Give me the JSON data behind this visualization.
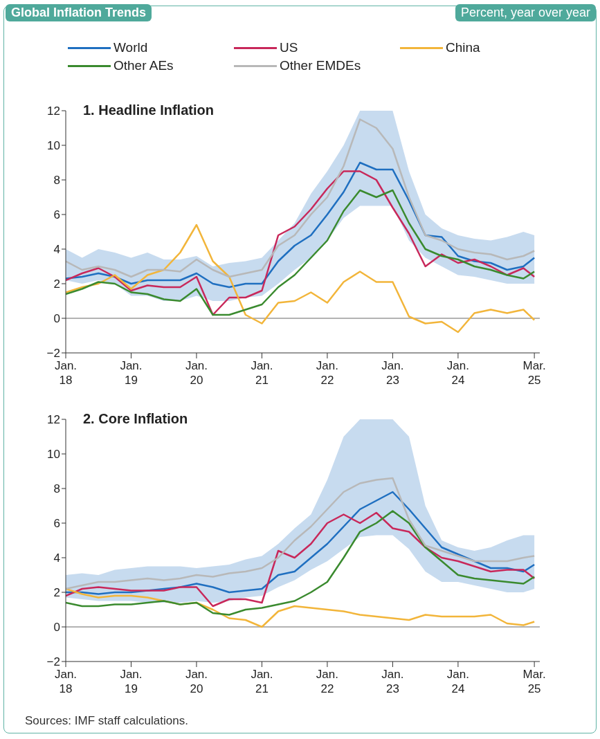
{
  "chart_data": [
    {
      "type": "line",
      "title": "1. Headline Inflation",
      "x": [
        "2018-01",
        "2018-04",
        "2018-07",
        "2018-10",
        "2019-01",
        "2019-04",
        "2019-07",
        "2019-10",
        "2020-01",
        "2020-04",
        "2020-07",
        "2020-10",
        "2021-01",
        "2021-04",
        "2021-07",
        "2021-10",
        "2022-01",
        "2022-04",
        "2022-07",
        "2022-10",
        "2023-01",
        "2023-04",
        "2023-07",
        "2023-10",
        "2024-01",
        "2024-04",
        "2024-07",
        "2024-10",
        "2025-01",
        "2025-03"
      ],
      "xlim": [
        "2018-01",
        "2025-04"
      ],
      "xticks": [
        {
          "value": "2018-01",
          "label": "Jan. 18"
        },
        {
          "value": "2019-01",
          "label": "Jan. 19"
        },
        {
          "value": "2020-01",
          "label": "Jan. 20"
        },
        {
          "value": "2021-01",
          "label": "Jan. 21"
        },
        {
          "value": "2022-01",
          "label": "Jan. 22"
        },
        {
          "value": "2023-01",
          "label": "Jan. 23"
        },
        {
          "value": "2024-01",
          "label": "Jan. 24"
        },
        {
          "value": "2025-03",
          "label": "Mar. 25"
        }
      ],
      "ylim": [
        -2,
        12
      ],
      "yticks": [
        {
          "value": -2,
          "label": "−2"
        },
        0,
        2,
        4,
        6,
        8,
        10,
        12
      ],
      "ref_lines": [
        {
          "axis": "y",
          "value": 0,
          "color": "#9a9a9a"
        }
      ],
      "legend": "top",
      "marker": "none",
      "line_style": "solid",
      "series": [
        {
          "name": "World",
          "color": "#1f6fc0",
          "values": [
            2.3,
            2.4,
            2.6,
            2.4,
            2.0,
            2.2,
            2.2,
            2.2,
            2.6,
            2.0,
            1.8,
            2.0,
            2.0,
            3.3,
            4.2,
            4.8,
            6.0,
            7.3,
            9.0,
            8.6,
            8.6,
            6.8,
            4.8,
            4.7,
            3.6,
            3.3,
            3.2,
            2.8,
            3.0,
            3.5
          ],
          "lower": [
            2.2,
            2.0,
            2.2,
            2.0,
            1.3,
            1.3,
            1.0,
            1.0,
            1.3,
            1.0,
            1.0,
            1.2,
            1.3,
            2.0,
            2.8,
            3.5,
            4.5,
            5.8,
            6.5,
            6.5,
            6.5,
            4.5,
            3.5,
            3.0,
            2.5,
            2.4,
            2.2,
            2.0,
            2.0,
            2.0
          ],
          "upper": [
            4.0,
            3.5,
            4.0,
            3.8,
            3.5,
            3.8,
            3.4,
            3.4,
            3.6,
            3.0,
            3.2,
            3.3,
            3.5,
            4.5,
            5.5,
            7.2,
            8.5,
            10,
            12,
            12,
            12,
            8.5,
            6.0,
            5.2,
            4.8,
            4.6,
            4.5,
            4.7,
            5.0,
            4.8
          ]
        },
        {
          "name": "US",
          "color": "#c8285a",
          "values": [
            2.2,
            2.6,
            2.9,
            2.4,
            1.6,
            1.9,
            1.8,
            1.8,
            2.4,
            0.2,
            1.2,
            1.2,
            1.6,
            4.8,
            5.3,
            6.3,
            7.5,
            8.5,
            8.5,
            8.0,
            6.4,
            4.9,
            3.0,
            3.7,
            3.2,
            3.4,
            3.0,
            2.5,
            2.9,
            2.4
          ]
        },
        {
          "name": "China",
          "color": "#f2b53a",
          "values": [
            1.5,
            1.8,
            2.0,
            2.5,
            1.7,
            2.5,
            2.8,
            3.8,
            5.4,
            3.3,
            2.4,
            0.2,
            -0.3,
            0.9,
            1.0,
            1.5,
            0.9,
            2.1,
            2.7,
            2.1,
            2.1,
            0.1,
            -0.3,
            -0.2,
            -0.8,
            0.3,
            0.5,
            0.3,
            0.5,
            -0.1
          ]
        },
        {
          "name": "Other AEs",
          "color": "#3a8a2e",
          "values": [
            1.4,
            1.7,
            2.1,
            2.0,
            1.5,
            1.4,
            1.1,
            1.0,
            1.7,
            0.2,
            0.2,
            0.5,
            0.8,
            1.8,
            2.5,
            3.5,
            4.5,
            6.2,
            7.4,
            7.0,
            7.4,
            5.5,
            4.0,
            3.6,
            3.4,
            3.0,
            2.8,
            2.5,
            2.3,
            2.7
          ]
        },
        {
          "name": "Other EMDEs",
          "color": "#b8b8b8",
          "values": [
            3.3,
            2.8,
            3.0,
            2.8,
            2.4,
            2.8,
            2.8,
            2.7,
            3.4,
            2.8,
            2.4,
            2.6,
            2.8,
            4.2,
            4.8,
            6.0,
            7.0,
            8.8,
            11.5,
            11.0,
            9.8,
            7.0,
            4.8,
            4.5,
            4.0,
            3.8,
            3.7,
            3.4,
            3.6,
            3.9
          ]
        }
      ]
    },
    {
      "type": "line",
      "title": "2. Core Inflation",
      "x": [
        "2018-01",
        "2018-04",
        "2018-07",
        "2018-10",
        "2019-01",
        "2019-04",
        "2019-07",
        "2019-10",
        "2020-01",
        "2020-04",
        "2020-07",
        "2020-10",
        "2021-01",
        "2021-04",
        "2021-07",
        "2021-10",
        "2022-01",
        "2022-04",
        "2022-07",
        "2022-10",
        "2023-01",
        "2023-04",
        "2023-07",
        "2023-10",
        "2024-01",
        "2024-04",
        "2024-07",
        "2024-10",
        "2025-01",
        "2025-03"
      ],
      "xlim": [
        "2018-01",
        "2025-04"
      ],
      "xticks": [
        {
          "value": "2018-01",
          "label": "Jan. 18"
        },
        {
          "value": "2019-01",
          "label": "Jan. 19"
        },
        {
          "value": "2020-01",
          "label": "Jan. 20"
        },
        {
          "value": "2021-01",
          "label": "Jan. 21"
        },
        {
          "value": "2022-01",
          "label": "Jan. 22"
        },
        {
          "value": "2023-01",
          "label": "Jan. 23"
        },
        {
          "value": "2024-01",
          "label": "Jan. 24"
        },
        {
          "value": "2025-03",
          "label": "Mar. 25"
        }
      ],
      "ylim": [
        -2,
        12
      ],
      "yticks": [
        {
          "value": -2,
          "label": "−2"
        },
        0,
        2,
        4,
        6,
        8,
        10,
        12
      ],
      "ref_lines": [
        {
          "axis": "y",
          "value": 0,
          "color": "#9a9a9a"
        }
      ],
      "marker": "none",
      "line_style": "solid",
      "series": [
        {
          "color": "#1f6fc0",
          "values": [
            2.0,
            2.0,
            1.9,
            2.0,
            2.0,
            2.1,
            2.2,
            2.3,
            2.5,
            2.3,
            2.0,
            2.1,
            2.2,
            3.0,
            3.2,
            4.0,
            4.8,
            5.8,
            6.8,
            7.3,
            7.8,
            6.8,
            5.7,
            4.6,
            4.2,
            3.8,
            3.4,
            3.4,
            3.2,
            3.6
          ],
          "lower": [
            1.7,
            1.6,
            1.5,
            1.5,
            1.5,
            1.4,
            1.4,
            1.4,
            1.5,
            1.4,
            1.5,
            1.7,
            1.8,
            2.3,
            2.7,
            3.3,
            3.8,
            4.5,
            5.2,
            5.3,
            5.3,
            4.5,
            3.2,
            2.6,
            2.6,
            2.4,
            2.2,
            2.0,
            2.0,
            2.2
          ],
          "upper": [
            3.0,
            3.1,
            3.0,
            3.3,
            3.4,
            3.5,
            3.5,
            3.5,
            3.4,
            3.5,
            3.6,
            3.9,
            4.1,
            4.8,
            5.7,
            6.5,
            8.5,
            11,
            12,
            12,
            12,
            11,
            7.0,
            5.0,
            4.6,
            4.4,
            4.6,
            5.0,
            5.3,
            5.3
          ]
        },
        {
          "color": "#c8285a",
          "values": [
            1.8,
            2.2,
            2.3,
            2.2,
            2.1,
            2.1,
            2.1,
            2.3,
            2.3,
            1.2,
            1.6,
            1.6,
            1.4,
            4.4,
            4.0,
            4.8,
            6.0,
            6.5,
            6.0,
            6.6,
            5.7,
            5.5,
            4.6,
            4.0,
            3.8,
            3.5,
            3.2,
            3.3,
            3.3,
            2.8
          ]
        },
        {
          "color": "#f2b53a",
          "values": [
            2.2,
            1.9,
            1.7,
            1.8,
            1.8,
            1.7,
            1.5,
            1.3,
            1.4,
            1.0,
            0.5,
            0.4,
            0.0,
            0.9,
            1.2,
            1.1,
            1.0,
            0.9,
            0.7,
            0.6,
            0.5,
            0.4,
            0.7,
            0.6,
            0.6,
            0.6,
            0.7,
            0.2,
            0.1,
            0.3
          ]
        },
        {
          "color": "#3a8a2e",
          "values": [
            1.4,
            1.2,
            1.2,
            1.3,
            1.3,
            1.4,
            1.5,
            1.3,
            1.4,
            0.8,
            0.7,
            1.0,
            1.1,
            1.3,
            1.5,
            2.0,
            2.6,
            4.0,
            5.5,
            6.0,
            6.7,
            6.0,
            4.6,
            3.8,
            3.0,
            2.8,
            2.7,
            2.6,
            2.5,
            2.9
          ]
        },
        {
          "color": "#b8b8b8",
          "values": [
            2.2,
            2.4,
            2.6,
            2.6,
            2.7,
            2.8,
            2.7,
            2.8,
            3.0,
            2.9,
            3.1,
            3.2,
            3.4,
            4.0,
            5.0,
            5.8,
            6.8,
            7.8,
            8.3,
            8.5,
            8.6,
            6.2,
            4.7,
            4.4,
            4.1,
            3.8,
            3.8,
            3.8,
            4.0,
            4.1
          ]
        }
      ]
    },
    {
      "type": "other",
      "title": "Global Inflation Trends",
      "subtitle": "Percent, year over year",
      "annotations": [
        "Sources: IMF staff calculations."
      ]
    }
  ]
}
